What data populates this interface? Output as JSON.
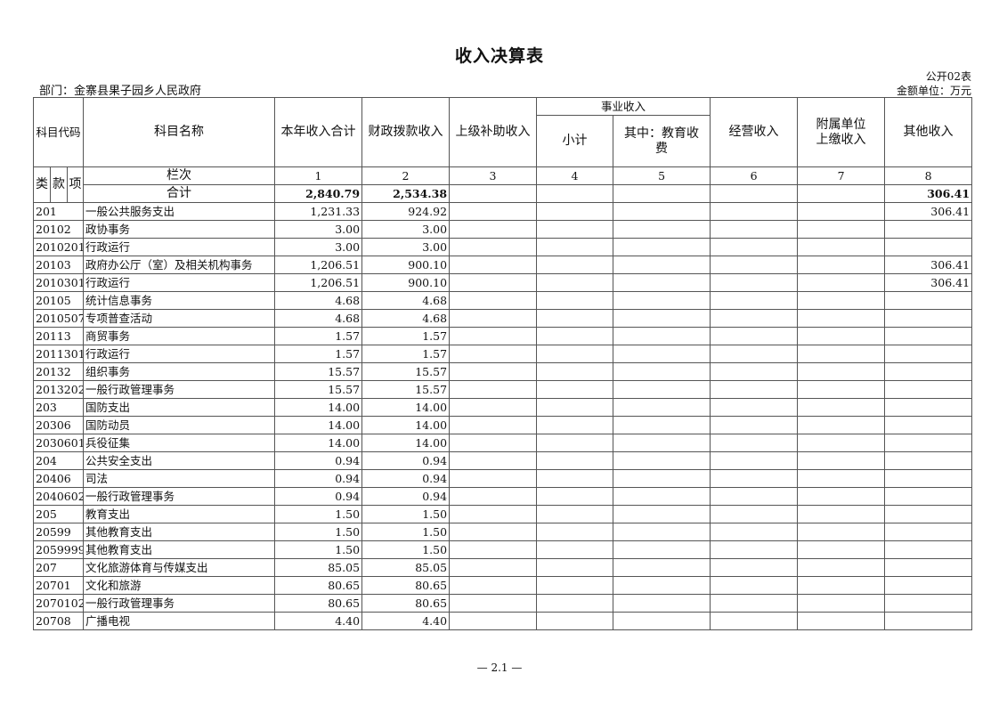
{
  "title": "收入决算表",
  "form_no": "公开02表",
  "department": "部门：金寨县果子园乡人民政府",
  "unit": "金额单位：万元",
  "headers": {
    "code": "科目代码",
    "name": "科目名称",
    "total": "本年收入合计",
    "fiscal": "财政拨款收入",
    "superior": "上级补助收入",
    "business": "事业收入",
    "subtotal": "小计",
    "education": "其中：教育收费",
    "operating": "经营收入",
    "affiliated": "附属单位上缴收入",
    "other": "其他收入",
    "lei": "类",
    "kuan": "款",
    "xiang": "项",
    "column_no": "栏次",
    "col_numbers": [
      "1",
      "2",
      "3",
      "4",
      "5",
      "6",
      "7",
      "8"
    ]
  },
  "totals": {
    "label": "合计",
    "values": [
      "2,840.79",
      "2,534.38",
      "",
      "",
      "",
      "",
      "",
      "306.41"
    ]
  },
  "rows": [
    {
      "code": "201",
      "name": "一般公共服务支出",
      "values": [
        "1,231.33",
        "924.92",
        "",
        "",
        "",
        "",
        "",
        "306.41"
      ]
    },
    {
      "code": "20102",
      "name": "政协事务",
      "values": [
        "3.00",
        "3.00",
        "",
        "",
        "",
        "",
        "",
        ""
      ]
    },
    {
      "code": "2010201",
      "name": "行政运行",
      "values": [
        "3.00",
        "3.00",
        "",
        "",
        "",
        "",
        "",
        ""
      ]
    },
    {
      "code": "20103",
      "name": "政府办公厅（室）及相关机构事务",
      "values": [
        "1,206.51",
        "900.10",
        "",
        "",
        "",
        "",
        "",
        "306.41"
      ]
    },
    {
      "code": "2010301",
      "name": "行政运行",
      "values": [
        "1,206.51",
        "900.10",
        "",
        "",
        "",
        "",
        "",
        "306.41"
      ]
    },
    {
      "code": "20105",
      "name": "统计信息事务",
      "values": [
        "4.68",
        "4.68",
        "",
        "",
        "",
        "",
        "",
        ""
      ]
    },
    {
      "code": "2010507",
      "name": "专项普查活动",
      "values": [
        "4.68",
        "4.68",
        "",
        "",
        "",
        "",
        "",
        ""
      ]
    },
    {
      "code": "20113",
      "name": "商贸事务",
      "values": [
        "1.57",
        "1.57",
        "",
        "",
        "",
        "",
        "",
        ""
      ]
    },
    {
      "code": "2011301",
      "name": "行政运行",
      "values": [
        "1.57",
        "1.57",
        "",
        "",
        "",
        "",
        "",
        ""
      ]
    },
    {
      "code": "20132",
      "name": "组织事务",
      "values": [
        "15.57",
        "15.57",
        "",
        "",
        "",
        "",
        "",
        ""
      ]
    },
    {
      "code": "2013202",
      "name": "一般行政管理事务",
      "values": [
        "15.57",
        "15.57",
        "",
        "",
        "",
        "",
        "",
        ""
      ]
    },
    {
      "code": "203",
      "name": "国防支出",
      "values": [
        "14.00",
        "14.00",
        "",
        "",
        "",
        "",
        "",
        ""
      ]
    },
    {
      "code": "20306",
      "name": "国防动员",
      "values": [
        "14.00",
        "14.00",
        "",
        "",
        "",
        "",
        "",
        ""
      ]
    },
    {
      "code": "2030601",
      "name": "兵役征集",
      "values": [
        "14.00",
        "14.00",
        "",
        "",
        "",
        "",
        "",
        ""
      ]
    },
    {
      "code": "204",
      "name": "公共安全支出",
      "values": [
        "0.94",
        "0.94",
        "",
        "",
        "",
        "",
        "",
        ""
      ]
    },
    {
      "code": "20406",
      "name": "司法",
      "values": [
        "0.94",
        "0.94",
        "",
        "",
        "",
        "",
        "",
        ""
      ]
    },
    {
      "code": "2040602",
      "name": "一般行政管理事务",
      "values": [
        "0.94",
        "0.94",
        "",
        "",
        "",
        "",
        "",
        ""
      ]
    },
    {
      "code": "205",
      "name": "教育支出",
      "values": [
        "1.50",
        "1.50",
        "",
        "",
        "",
        "",
        "",
        ""
      ]
    },
    {
      "code": "20599",
      "name": "其他教育支出",
      "values": [
        "1.50",
        "1.50",
        "",
        "",
        "",
        "",
        "",
        ""
      ]
    },
    {
      "code": "2059999",
      "name": "其他教育支出",
      "values": [
        "1.50",
        "1.50",
        "",
        "",
        "",
        "",
        "",
        ""
      ]
    },
    {
      "code": "207",
      "name": "文化旅游体育与传媒支出",
      "values": [
        "85.05",
        "85.05",
        "",
        "",
        "",
        "",
        "",
        ""
      ]
    },
    {
      "code": "20701",
      "name": "文化和旅游",
      "values": [
        "80.65",
        "80.65",
        "",
        "",
        "",
        "",
        "",
        ""
      ]
    },
    {
      "code": "2070102",
      "name": "一般行政管理事务",
      "values": [
        "80.65",
        "80.65",
        "",
        "",
        "",
        "",
        "",
        ""
      ]
    },
    {
      "code": "20708",
      "name": "广播电视",
      "values": [
        "4.40",
        "4.40",
        "",
        "",
        "",
        "",
        "",
        ""
      ]
    }
  ],
  "footer": "— 2.1 —"
}
